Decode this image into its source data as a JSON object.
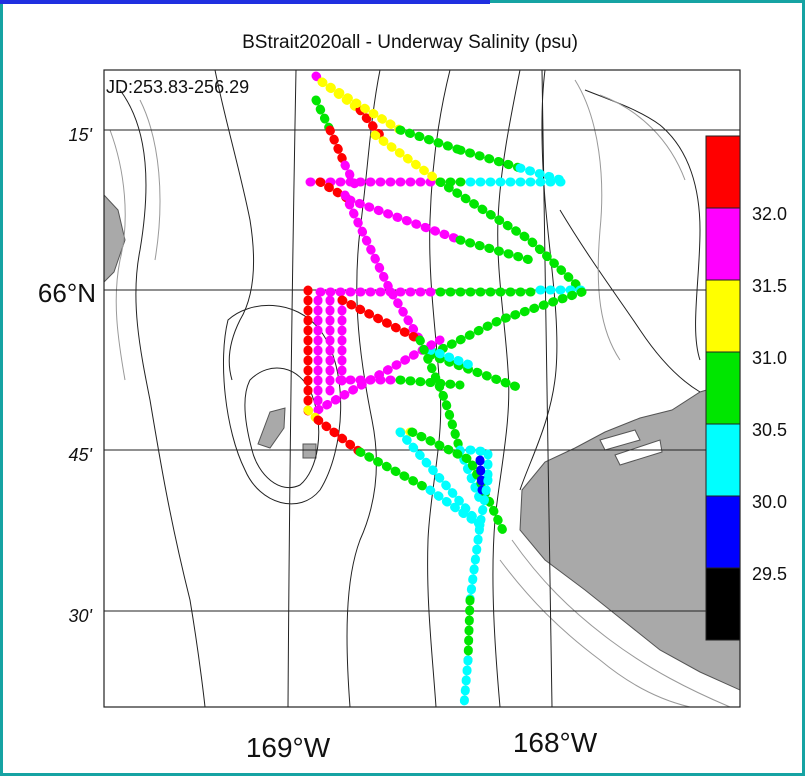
{
  "title": "BStrait2020all - Underway Salinity (psu)",
  "jd_label": "JD:253.83-256.29",
  "lat_labels": [
    "15'",
    "66°N",
    "45'",
    "30'"
  ],
  "lon_labels": [
    "169°W",
    "168°W"
  ],
  "colorbar": {
    "labels": [
      "32.0",
      "31.5",
      "31.0",
      "30.5",
      "30.0",
      "29.5"
    ],
    "colors": [
      "#ff0000",
      "#ff00ff",
      "#ffff00",
      "#00e600",
      "#00ffff",
      "#0000ff",
      "#000000"
    ]
  },
  "colors": {
    "land": "#a9a9a9",
    "frame_border": "#16a3a3",
    "topbar": "#1f2fe0"
  }
}
